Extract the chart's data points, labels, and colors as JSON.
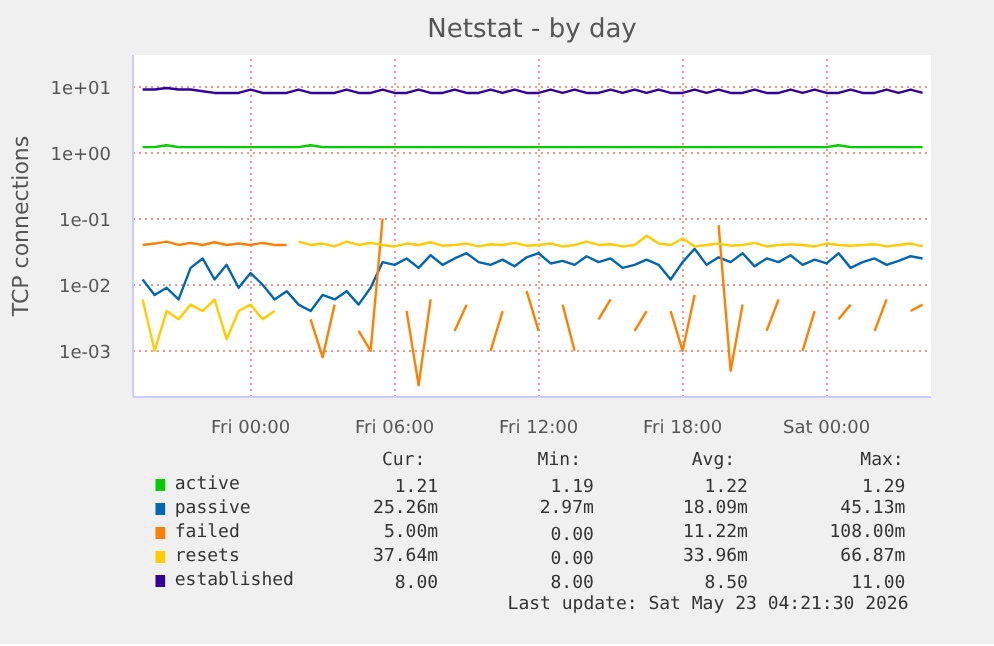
{
  "chart_data": {
    "type": "line",
    "title": "Netstat - by day",
    "ylabel": "TCP connections",
    "log": "y",
    "grid": true,
    "legend": "bottom",
    "marker": "none",
    "line_style": "solid",
    "xlim": [
      "2026-05-21T19:06",
      "2026-05-23T04:21"
    ],
    "xticks": [
      {
        "value": "2026-05-22T00:00",
        "label": "Fri 00:00"
      },
      {
        "value": "2026-05-22T06:00",
        "label": "Fri 06:00"
      },
      {
        "value": "2026-05-22T12:00",
        "label": "Fri 12:00"
      },
      {
        "value": "2026-05-22T18:00",
        "label": "Fri 18:00"
      },
      {
        "value": "2026-05-23T00:00",
        "label": "Sat 00:00"
      }
    ],
    "ylim": [
      0.0002,
      30
    ],
    "yticks": [
      {
        "value": 0.001,
        "label": "1e-03"
      },
      {
        "value": 0.01,
        "label": "1e-02"
      },
      {
        "value": 0.1,
        "label": "1e-01"
      },
      {
        "value": 1,
        "label": "1e+00"
      },
      {
        "value": 10,
        "label": "1e+01"
      }
    ],
    "x": [
      "2026-05-21T19:30",
      "2026-05-21T20:00",
      "2026-05-21T20:30",
      "2026-05-21T21:00",
      "2026-05-21T21:30",
      "2026-05-21T22:00",
      "2026-05-21T22:30",
      "2026-05-21T23:00",
      "2026-05-21T23:30",
      "2026-05-22T00:00",
      "2026-05-22T00:30",
      "2026-05-22T01:00",
      "2026-05-22T01:30",
      "2026-05-22T02:00",
      "2026-05-22T02:30",
      "2026-05-22T03:00",
      "2026-05-22T03:30",
      "2026-05-22T04:00",
      "2026-05-22T04:30",
      "2026-05-22T05:00",
      "2026-05-22T05:30",
      "2026-05-22T06:00",
      "2026-05-22T06:30",
      "2026-05-22T07:00",
      "2026-05-22T07:30",
      "2026-05-22T08:00",
      "2026-05-22T08:30",
      "2026-05-22T09:00",
      "2026-05-22T09:30",
      "2026-05-22T10:00",
      "2026-05-22T10:30",
      "2026-05-22T11:00",
      "2026-05-22T11:30",
      "2026-05-22T12:00",
      "2026-05-22T12:30",
      "2026-05-22T13:00",
      "2026-05-22T13:30",
      "2026-05-22T14:00",
      "2026-05-22T14:30",
      "2026-05-22T15:00",
      "2026-05-22T15:30",
      "2026-05-22T16:00",
      "2026-05-22T16:30",
      "2026-05-22T17:00",
      "2026-05-22T17:30",
      "2026-05-22T18:00",
      "2026-05-22T18:30",
      "2026-05-22T19:00",
      "2026-05-22T19:30",
      "2026-05-22T20:00",
      "2026-05-22T20:30",
      "2026-05-22T21:00",
      "2026-05-22T21:30",
      "2026-05-22T22:00",
      "2026-05-22T22:30",
      "2026-05-22T23:00",
      "2026-05-22T23:30",
      "2026-05-23T00:00",
      "2026-05-23T00:30",
      "2026-05-23T01:00",
      "2026-05-23T01:30",
      "2026-05-23T02:00",
      "2026-05-23T02:30",
      "2026-05-23T03:00",
      "2026-05-23T03:30",
      "2026-05-23T04:00"
    ],
    "series": [
      {
        "name": "active",
        "color": "#00cc00",
        "values": [
          1.21,
          1.21,
          1.29,
          1.21,
          1.21,
          1.21,
          1.21,
          1.21,
          1.21,
          1.21,
          1.21,
          1.21,
          1.21,
          1.21,
          1.29,
          1.21,
          1.21,
          1.21,
          1.21,
          1.21,
          1.21,
          1.21,
          1.21,
          1.21,
          1.21,
          1.21,
          1.21,
          1.21,
          1.21,
          1.21,
          1.21,
          1.21,
          1.21,
          1.21,
          1.21,
          1.21,
          1.21,
          1.21,
          1.21,
          1.21,
          1.21,
          1.21,
          1.21,
          1.21,
          1.21,
          1.21,
          1.21,
          1.21,
          1.21,
          1.21,
          1.21,
          1.21,
          1.21,
          1.21,
          1.21,
          1.21,
          1.21,
          1.21,
          1.29,
          1.21,
          1.21,
          1.21,
          1.21,
          1.21,
          1.21,
          1.21
        ]
      },
      {
        "name": "passive",
        "color": "#0066b3",
        "values": [
          0.012,
          0.007,
          0.009,
          0.006,
          0.018,
          0.025,
          0.012,
          0.02,
          0.009,
          0.015,
          0.01,
          0.006,
          0.008,
          0.005,
          0.004,
          0.007,
          0.006,
          0.008,
          0.005,
          0.009,
          0.022,
          0.02,
          0.025,
          0.018,
          0.028,
          0.02,
          0.025,
          0.03,
          0.022,
          0.02,
          0.024,
          0.019,
          0.026,
          0.03,
          0.021,
          0.023,
          0.02,
          0.027,
          0.022,
          0.025,
          0.018,
          0.02,
          0.024,
          0.02,
          0.012,
          0.022,
          0.035,
          0.02,
          0.026,
          0.022,
          0.03,
          0.019,
          0.025,
          0.022,
          0.028,
          0.02,
          0.024,
          0.021,
          0.03,
          0.018,
          0.022,
          0.025,
          0.02,
          0.023,
          0.027,
          0.025
        ]
      },
      {
        "name": "failed",
        "color": "#ff8000",
        "values": [
          0.04,
          0.042,
          0.045,
          0.04,
          0.043,
          0.04,
          0.044,
          0.04,
          0.042,
          0.04,
          0.043,
          0.04,
          0.04,
          null,
          0.003,
          0.0008,
          0.005,
          null,
          0.002,
          0.001,
          0.1,
          null,
          0.004,
          0.0003,
          0.006,
          null,
          0.002,
          0.005,
          null,
          0.001,
          0.004,
          null,
          0.008,
          0.002,
          null,
          0.005,
          0.001,
          null,
          0.003,
          0.006,
          null,
          0.002,
          0.004,
          null,
          0.004,
          0.001,
          0.007,
          null,
          0.08,
          0.0005,
          0.005,
          null,
          0.002,
          0.006,
          null,
          0.001,
          0.004,
          null,
          0.003,
          0.005,
          null,
          0.002,
          0.006,
          null,
          0.004,
          0.005
        ]
      },
      {
        "name": "resets",
        "color": "#ffcc00",
        "values": [
          0.006,
          0.001,
          0.004,
          0.003,
          0.005,
          0.004,
          0.006,
          0.0015,
          0.004,
          0.005,
          0.003,
          0.004,
          null,
          0.045,
          0.04,
          0.042,
          0.038,
          0.045,
          0.04,
          0.043,
          0.04,
          0.038,
          0.042,
          0.04,
          0.044,
          0.039,
          0.04,
          0.042,
          0.038,
          0.041,
          0.04,
          0.043,
          0.039,
          0.04,
          0.042,
          0.038,
          0.04,
          0.045,
          0.04,
          0.041,
          0.038,
          0.04,
          0.055,
          0.042,
          0.04,
          0.05,
          0.038,
          0.04,
          0.042,
          0.039,
          0.04,
          0.043,
          0.038,
          0.04,
          0.041,
          0.04,
          0.038,
          0.042,
          0.04,
          0.039,
          0.04,
          0.041,
          0.038,
          0.04,
          0.042,
          0.038
        ]
      },
      {
        "name": "established",
        "color": "#330099",
        "values": [
          9,
          9,
          9.5,
          9,
          9,
          8.5,
          8,
          8,
          8,
          9,
          8,
          8,
          8,
          9,
          8,
          8,
          8,
          9,
          8,
          8,
          9,
          8,
          8,
          9,
          8,
          8,
          9,
          8,
          8,
          9,
          8,
          9,
          8,
          8,
          9,
          8,
          9,
          8,
          8,
          9,
          8,
          9,
          8,
          9,
          8,
          8,
          9,
          8,
          9,
          8,
          8,
          9,
          8,
          8,
          9,
          8,
          9,
          8,
          8,
          9,
          8,
          8,
          9,
          8,
          9,
          8
        ]
      }
    ],
    "annotations": [
      "Cur:",
      "Min:",
      "Avg:",
      "Max:",
      "1.21",
      "1.19",
      "1.22",
      "1.29",
      "25.26m",
      "2.97m",
      "18.09m",
      "45.13m",
      "5.00m",
      "0.00",
      "11.22m",
      "108.00m",
      "37.64m",
      "0.00",
      "33.96m",
      "66.87m",
      "8.00",
      "8.00",
      "8.50",
      "11.00",
      "Last update: Sat May 23 04:21:30 2026"
    ]
  }
}
